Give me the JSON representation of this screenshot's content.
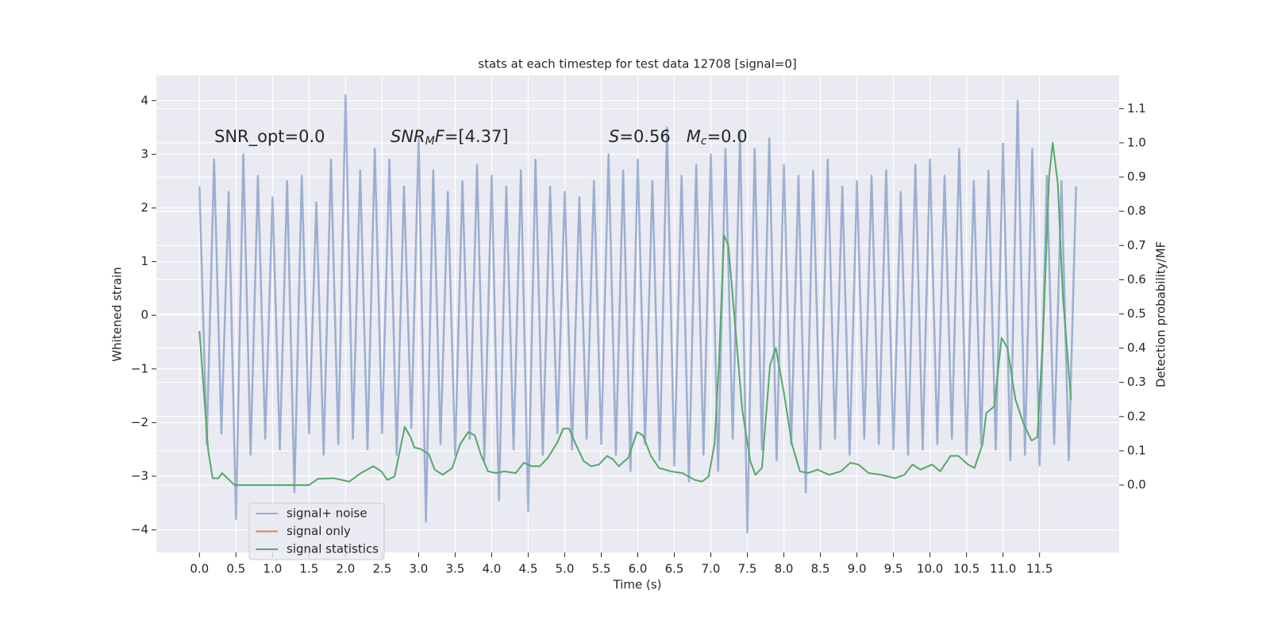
{
  "chart_data": {
    "type": "line",
    "title": "stats at each timestep for test data 12708 [signal=0]",
    "xlabel": "Time (s)",
    "ylabel": "Whitened strain",
    "y2label": "Detection probability/MF",
    "xlim": [
      -0.59,
      12.59
    ],
    "ylim": [
      -4.42,
      4.47
    ],
    "y2lim": [
      -0.197,
      1.197
    ],
    "xticks": [
      {
        "value": 0,
        "label": "0.0"
      },
      0.5,
      {
        "value": 1,
        "label": "1.0"
      },
      1.5,
      {
        "value": 2,
        "label": "2.0"
      },
      2.5,
      {
        "value": 3,
        "label": "3.0"
      },
      3.5,
      {
        "value": 4,
        "label": "4.0"
      },
      4.5,
      {
        "value": 5,
        "label": "5.0"
      },
      5.5,
      {
        "value": 6,
        "label": "6.0"
      },
      6.5,
      {
        "value": 7,
        "label": "7.0"
      },
      7.5,
      {
        "value": 8,
        "label": "8.0"
      },
      8.5,
      {
        "value": 9,
        "label": "9.0"
      },
      9.5,
      {
        "value": 10,
        "label": "10.0"
      },
      10.5,
      {
        "value": 11,
        "label": "11.0"
      },
      11.5
    ],
    "yticks": [
      {
        "value": -4,
        "label": "−4"
      },
      {
        "value": -3,
        "label": "−3"
      },
      {
        "value": -2,
        "label": "−2"
      },
      {
        "value": -1,
        "label": "−1"
      },
      0,
      1,
      2,
      3,
      4
    ],
    "y2ticks": [
      {
        "value": 0,
        "label": "0.0"
      },
      0.1,
      0.2,
      0.3,
      0.4,
      0.5,
      0.6,
      0.7,
      0.8,
      0.9,
      {
        "value": 1,
        "label": "1.0"
      },
      1.1
    ],
    "grid": true,
    "legend": "lower left",
    "annotations": [
      [
        {
          "text": "SNR_opt=0.0",
          "style": "normal"
        }
      ],
      [
        {
          "text": "SNR",
          "style": "italic"
        },
        {
          "text": "M",
          "style": "italic-sub"
        },
        {
          "text": "F",
          "style": "italic"
        },
        {
          "text": "=[4.37]",
          "style": "normal"
        }
      ],
      [
        {
          "text": "S",
          "style": "italic"
        },
        {
          "text": "=0.56   ",
          "style": "normal"
        },
        {
          "text": "M",
          "style": "italic"
        },
        {
          "text": "c",
          "style": "italic-sub"
        },
        {
          "text": "=0.0",
          "style": "normal"
        }
      ]
    ],
    "series": [
      {
        "name": "signal+ noise",
        "color": "#4c72b0",
        "opacity": 0.5,
        "axis": "y",
        "x": [
          0,
          0.1,
          0.2,
          0.3,
          0.4,
          0.5,
          0.6,
          0.7,
          0.8,
          0.9,
          1,
          1.1,
          1.2,
          1.3,
          1.4,
          1.5,
          1.6,
          1.7,
          1.8,
          1.9,
          2,
          2.1,
          2.2,
          2.3,
          2.4,
          2.5,
          2.6,
          2.7,
          2.8,
          2.9,
          3,
          3.1,
          3.2,
          3.3,
          3.4,
          3.5,
          3.6,
          3.7,
          3.8,
          3.9,
          4,
          4.1,
          4.2,
          4.3,
          4.4,
          4.5,
          4.6,
          4.7,
          4.8,
          4.9,
          5,
          5.1,
          5.2,
          5.3,
          5.4,
          5.5,
          5.6,
          5.7,
          5.8,
          5.9,
          6,
          6.1,
          6.2,
          6.3,
          6.4,
          6.5,
          6.6,
          6.7,
          6.8,
          6.9,
          7,
          7.1,
          7.2,
          7.3,
          7.4,
          7.5,
          7.6,
          7.7,
          7.8,
          7.9,
          8,
          8.1,
          8.2,
          8.3,
          8.4,
          8.5,
          8.6,
          8.7,
          8.8,
          8.9,
          9,
          9.1,
          9.2,
          9.3,
          9.4,
          9.5,
          9.6,
          9.7,
          9.8,
          9.9,
          10,
          10.1,
          10.2,
          10.3,
          10.4,
          10.5,
          10.6,
          10.7,
          10.8,
          10.9,
          11,
          11.1,
          11.2,
          11.3,
          11.4,
          11.5,
          11.6,
          11.7,
          11.8,
          11.9,
          12
        ],
        "values": [
          2.4,
          -2.4,
          2.9,
          -2.2,
          2.3,
          -3.8,
          3.0,
          -2.6,
          2.6,
          -2.3,
          2.2,
          -2.5,
          2.5,
          -3.3,
          2.6,
          -2.2,
          2.1,
          -2.6,
          2.9,
          -2.4,
          4.1,
          -2.3,
          2.7,
          -2.5,
          3.1,
          -2.2,
          2.9,
          -2.6,
          2.4,
          -2.1,
          3.3,
          -3.85,
          2.7,
          -2.4,
          2.3,
          -2.6,
          2.5,
          -2.3,
          2.8,
          -2.7,
          2.6,
          -3.45,
          2.4,
          -2.5,
          2.7,
          -3.65,
          2.9,
          -2.6,
          2.4,
          -2.2,
          2.3,
          -2.5,
          2.2,
          -2.3,
          2.5,
          -2.4,
          3.0,
          -2.6,
          2.7,
          -2.9,
          2.9,
          -2.4,
          2.5,
          -2.7,
          3.5,
          -2.8,
          2.6,
          -3.1,
          2.8,
          -2.6,
          3.0,
          -2.9,
          3.1,
          -2.3,
          3.4,
          -4.05,
          3.1,
          -2.5,
          3.3,
          -2.7,
          2.8,
          -2.4,
          2.6,
          -3.3,
          2.7,
          -2.5,
          2.9,
          -2.3,
          2.4,
          -2.6,
          2.5,
          -2.3,
          2.6,
          -2.4,
          2.7,
          -2.5,
          2.3,
          -2.6,
          2.8,
          -2.5,
          2.9,
          -2.4,
          2.6,
          -2.3,
          3.1,
          -2.6,
          2.5,
          -2.4,
          2.7,
          -2.5,
          3.2,
          -2.7,
          4.0,
          -2.6,
          3.1,
          -2.8,
          2.6,
          -2.4,
          2.5,
          -2.7,
          2.4
        ]
      },
      {
        "name": "signal only",
        "color": "#dd8452",
        "axis": "y"
      },
      {
        "name": "signal statistics",
        "color": "#55a868",
        "axis": "y2",
        "x": [
          0,
          0.12,
          0.18,
          0.26,
          0.31,
          0.48,
          1.5,
          1.62,
          1.84,
          2.05,
          2.21,
          2.38,
          2.49,
          2.57,
          2.67,
          2.81,
          2.89,
          2.94,
          3.03,
          3.14,
          3.22,
          3.33,
          3.46,
          3.57,
          3.68,
          3.77,
          3.85,
          3.95,
          4.06,
          4.17,
          4.33,
          4.44,
          4.55,
          4.66,
          4.77,
          4.9,
          4.98,
          5.06,
          5.15,
          5.26,
          5.36,
          5.47,
          5.58,
          5.66,
          5.74,
          5.87,
          5.99,
          6.07,
          6.18,
          6.29,
          6.45,
          6.61,
          6.78,
          6.88,
          6.97,
          7.05,
          7.11,
          7.18,
          7.24,
          7.32,
          7.43,
          7.54,
          7.61,
          7.7,
          7.81,
          7.89,
          8.0,
          8.11,
          8.22,
          8.33,
          8.46,
          8.62,
          8.78,
          8.91,
          9.02,
          9.16,
          9.33,
          9.52,
          9.65,
          9.76,
          9.87,
          10.03,
          10.14,
          10.28,
          10.39,
          10.52,
          10.61,
          10.72,
          10.77,
          10.88,
          10.98,
          11.06,
          11.17,
          11.28,
          11.39,
          11.47,
          11.55,
          11.63,
          11.68,
          11.75,
          11.82,
          11.93
        ],
        "values": [
          0.45,
          0.1,
          0.02,
          0.02,
          0.035,
          0.0,
          0.0,
          0.018,
          0.02,
          0.01,
          0.035,
          0.055,
          0.04,
          0.015,
          0.025,
          0.17,
          0.14,
          0.11,
          0.105,
          0.09,
          0.045,
          0.03,
          0.05,
          0.12,
          0.155,
          0.145,
          0.09,
          0.04,
          0.035,
          0.04,
          0.035,
          0.065,
          0.055,
          0.055,
          0.08,
          0.125,
          0.165,
          0.165,
          0.12,
          0.07,
          0.055,
          0.06,
          0.085,
          0.075,
          0.055,
          0.08,
          0.155,
          0.145,
          0.085,
          0.05,
          0.04,
          0.035,
          0.015,
          0.01,
          0.025,
          0.12,
          0.35,
          0.73,
          0.7,
          0.5,
          0.22,
          0.07,
          0.03,
          0.05,
          0.35,
          0.4,
          0.27,
          0.12,
          0.04,
          0.035,
          0.045,
          0.03,
          0.04,
          0.065,
          0.06,
          0.035,
          0.03,
          0.02,
          0.03,
          0.06,
          0.045,
          0.06,
          0.04,
          0.085,
          0.085,
          0.06,
          0.05,
          0.12,
          0.21,
          0.23,
          0.43,
          0.4,
          0.25,
          0.18,
          0.13,
          0.14,
          0.45,
          0.9,
          1.0,
          0.88,
          0.55,
          0.25
        ]
      }
    ]
  }
}
